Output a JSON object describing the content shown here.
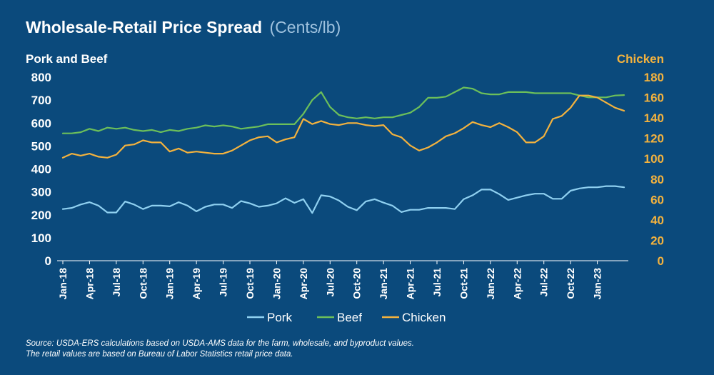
{
  "title": "Wholesale-Retail Price Spread",
  "title_unit": "(Cents/lb)",
  "left_axis_label": "Pork and Beef",
  "right_axis_label": "Chicken",
  "source_line1": "Source: USDA-ERS calculations based on USDA-AMS data for the farm, wholesale, and byproduct values.",
  "source_line2": "The retail values are based on Bureau of Labor Statistics retail price data.",
  "colors": {
    "background": "#0b4a7c",
    "pork": "#8fd0f0",
    "beef": "#6cbf5a",
    "chicken": "#f3b23e"
  },
  "chart_data": {
    "type": "line",
    "x_tick_labels": [
      "Jan-18",
      "Apr-18",
      "Jul-18",
      "Oct-18",
      "Jan-19",
      "Apr-19",
      "Jul-19",
      "Oct-19",
      "Jan-20",
      "Apr-20",
      "Jul-20",
      "Oct-20",
      "Jan-21",
      "Apr-21",
      "Jul-21",
      "Oct-21",
      "Jan-22",
      "Apr-22",
      "Jul-22",
      "Oct-22",
      "Jan-23"
    ],
    "x_start": "Jan-18",
    "x_end": "Mar-23",
    "left_axis": {
      "label": "Pork and Beef",
      "ylim": [
        0,
        800
      ],
      "ticks": [
        0,
        100,
        200,
        300,
        400,
        500,
        600,
        700,
        800
      ]
    },
    "right_axis": {
      "label": "Chicken",
      "ylim": [
        0,
        180
      ],
      "ticks": [
        0,
        20,
        40,
        60,
        80,
        100,
        120,
        140,
        160,
        180
      ]
    },
    "series": [
      {
        "name": "Pork",
        "axis": "left",
        "values": [
          225,
          230,
          245,
          255,
          240,
          210,
          210,
          258,
          245,
          225,
          240,
          240,
          237,
          255,
          240,
          215,
          235,
          245,
          245,
          230,
          260,
          250,
          235,
          240,
          250,
          272,
          252,
          268,
          208,
          285,
          280,
          262,
          235,
          220,
          258,
          268,
          253,
          240,
          212,
          222,
          222,
          230,
          230,
          230,
          225,
          268,
          285,
          310,
          310,
          290,
          265,
          275,
          285,
          292,
          292,
          270,
          270,
          305,
          315,
          320,
          320,
          325,
          325,
          320
        ]
      },
      {
        "name": "Beef",
        "axis": "left",
        "values": [
          555,
          555,
          560,
          575,
          565,
          580,
          575,
          580,
          570,
          565,
          570,
          560,
          570,
          565,
          575,
          580,
          590,
          585,
          590,
          585,
          575,
          580,
          585,
          595,
          595,
          595,
          595,
          640,
          700,
          735,
          670,
          635,
          625,
          620,
          625,
          620,
          625,
          625,
          635,
          645,
          670,
          710,
          710,
          715,
          735,
          755,
          750,
          730,
          725,
          725,
          735,
          735,
          735,
          730,
          730,
          730,
          730,
          730,
          720,
          712,
          712,
          712,
          720,
          722
        ]
      },
      {
        "name": "Chicken",
        "axis": "right",
        "values": [
          101,
          105,
          103,
          105,
          102,
          101,
          104,
          113,
          114,
          118,
          116,
          116,
          107,
          110,
          106,
          107,
          106,
          105,
          105,
          108,
          113,
          118,
          121,
          122,
          116,
          119,
          121,
          139,
          134,
          137,
          134,
          133,
          135,
          135,
          133,
          132,
          133,
          124,
          121,
          113,
          108,
          111,
          116,
          122,
          125,
          130,
          136,
          133,
          131,
          135,
          131,
          126,
          116,
          116,
          122,
          139,
          142,
          150,
          162,
          162,
          160,
          155,
          150,
          147
        ]
      }
    ]
  }
}
